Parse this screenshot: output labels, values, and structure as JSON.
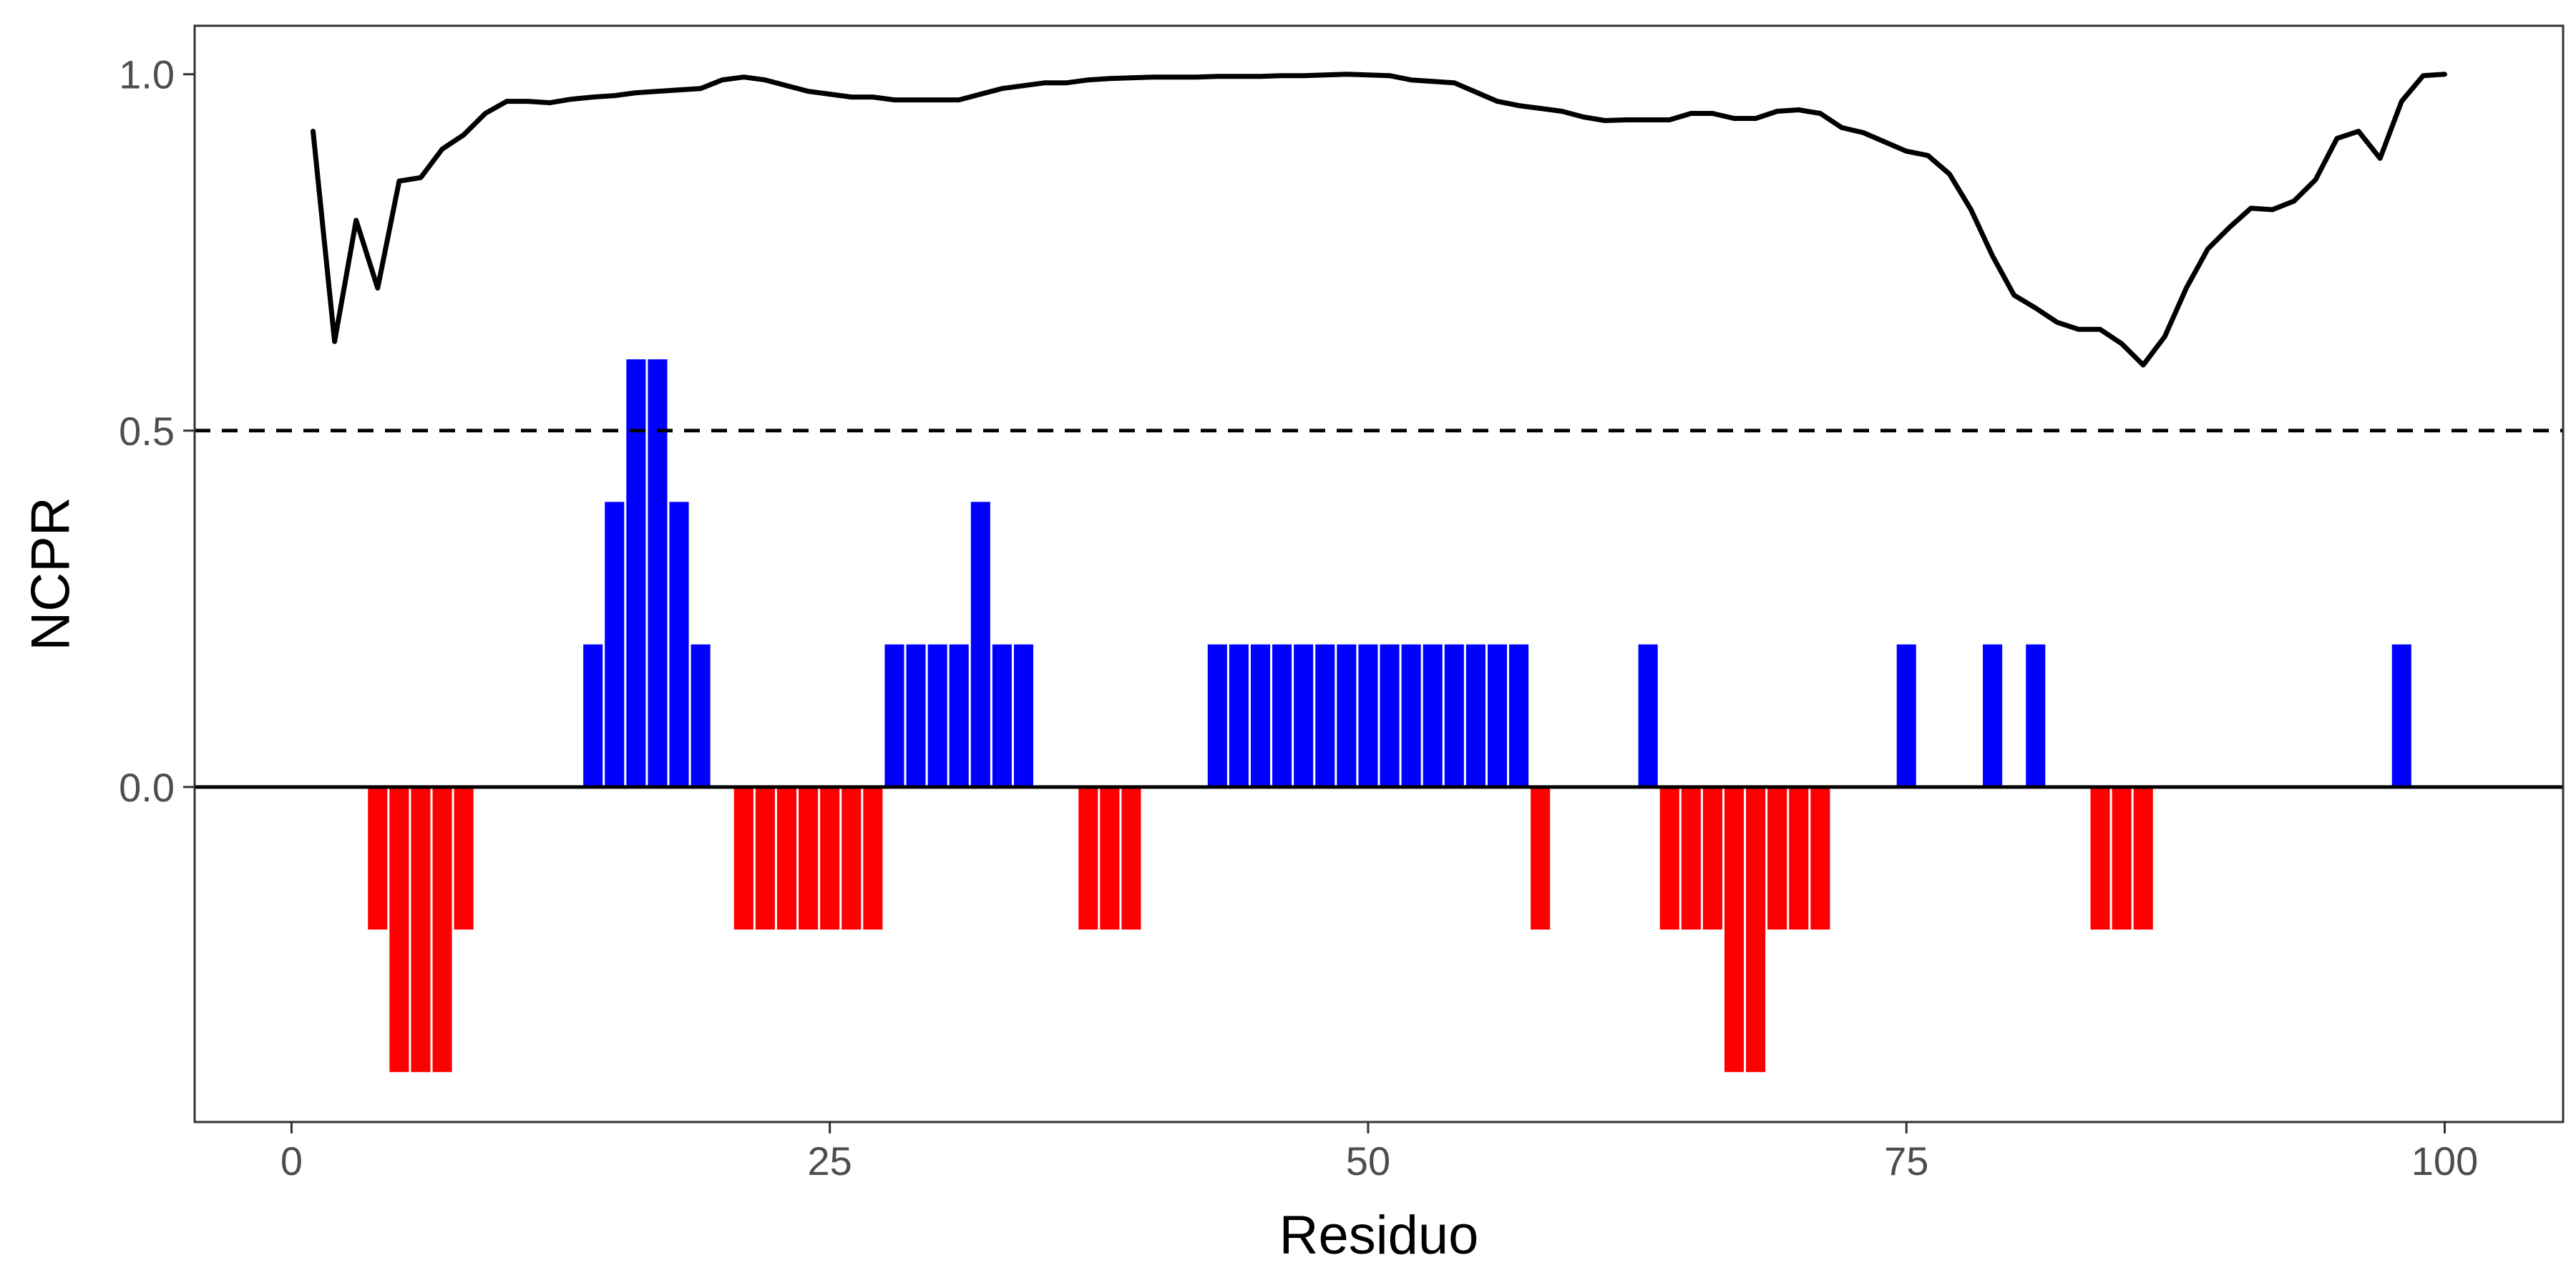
{
  "chart_data": {
    "type": "bar",
    "xlabel": "Residuo",
    "ylabel": "NCPR",
    "xlim": [
      -4.5,
      105.5
    ],
    "ylim": [
      -0.47,
      1.068
    ],
    "xticks": [
      0,
      25,
      50,
      75,
      100
    ],
    "xtick_labels": [
      "0",
      "25",
      "50",
      "75",
      "100"
    ],
    "yticks": [
      0.0,
      0.5,
      1.0
    ],
    "ytick_labels": [
      "0.0",
      "0.5",
      "1.0"
    ],
    "grid": false,
    "legend": "none",
    "reference_lines": [
      {
        "y": 0.5,
        "style": "dashed",
        "color": "#000000"
      },
      {
        "y": 0.0,
        "style": "solid",
        "color": "#000000"
      }
    ],
    "colors": {
      "positive": "#0000ff",
      "negative": "#ff0000",
      "line": "#000000"
    },
    "bars": {
      "x": [
        4,
        5,
        6,
        7,
        8,
        14,
        15,
        16,
        17,
        18,
        19,
        21,
        22,
        23,
        24,
        25,
        26,
        27,
        28,
        29,
        30,
        31,
        32,
        33,
        34,
        37,
        38,
        39,
        43,
        44,
        45,
        46,
        47,
        48,
        49,
        50,
        51,
        52,
        53,
        54,
        55,
        56,
        57,
        58,
        63,
        64,
        65,
        66,
        67,
        68,
        69,
        70,
        71,
        75,
        79,
        81,
        84,
        85,
        86,
        98
      ],
      "values": [
        -0.2,
        -0.4,
        -0.4,
        -0.4,
        -0.2,
        0.2,
        0.4,
        0.6,
        0.6,
        0.4,
        0.2,
        -0.2,
        -0.2,
        -0.2,
        -0.2,
        -0.2,
        -0.2,
        -0.2,
        0.2,
        0.2,
        0.2,
        0.2,
        0.4,
        0.2,
        0.2,
        -0.2,
        -0.2,
        -0.2,
        0.2,
        0.2,
        0.2,
        0.2,
        0.2,
        0.2,
        0.2,
        0.2,
        0.2,
        0.2,
        0.2,
        0.2,
        0.2,
        0.2,
        0.2,
        -0.2,
        0.2,
        -0.2,
        -0.2,
        -0.2,
        -0.4,
        -0.4,
        -0.2,
        -0.2,
        -0.2,
        0.2,
        0.2,
        0.2,
        -0.2,
        -0.2,
        -0.2,
        0.2
      ]
    },
    "line": {
      "x": [
        1,
        2,
        3,
        4,
        5,
        6,
        7,
        8,
        9,
        10,
        11,
        12,
        13,
        14,
        15,
        16,
        17,
        18,
        19,
        20,
        21,
        22,
        23,
        24,
        25,
        26,
        27,
        28,
        29,
        30,
        31,
        32,
        33,
        34,
        35,
        36,
        37,
        38,
        39,
        40,
        41,
        42,
        43,
        44,
        45,
        46,
        47,
        48,
        49,
        50,
        51,
        52,
        53,
        54,
        55,
        56,
        57,
        58,
        59,
        60,
        61,
        62,
        63,
        64,
        65,
        66,
        67,
        68,
        69,
        70,
        71,
        72,
        73,
        74,
        75,
        76,
        77,
        78,
        79,
        80,
        81,
        82,
        83,
        84,
        85,
        86,
        87,
        88,
        89,
        90,
        91,
        92,
        93,
        94,
        95,
        96,
        97,
        98,
        99,
        100
      ],
      "values": [
        0.92,
        0.625,
        0.795,
        0.7,
        0.85,
        0.855,
        0.895,
        0.915,
        0.945,
        0.962,
        0.962,
        0.96,
        0.965,
        0.968,
        0.97,
        0.974,
        0.976,
        0.978,
        0.98,
        0.992,
        0.996,
        0.992,
        0.984,
        0.976,
        0.972,
        0.968,
        0.968,
        0.964,
        0.964,
        0.964,
        0.964,
        0.972,
        0.98,
        0.984,
        0.988,
        0.988,
        0.992,
        0.994,
        0.995,
        0.996,
        0.996,
        0.996,
        0.997,
        0.997,
        0.997,
        0.998,
        0.998,
        0.999,
        1.0,
        0.999,
        0.998,
        0.992,
        0.99,
        0.988,
        0.975,
        0.962,
        0.956,
        0.952,
        0.948,
        0.94,
        0.935,
        0.936,
        0.936,
        0.936,
        0.945,
        0.945,
        0.938,
        0.938,
        0.948,
        0.95,
        0.945,
        0.925,
        0.918,
        0.905,
        0.892,
        0.886,
        0.86,
        0.81,
        0.745,
        0.69,
        0.672,
        0.652,
        0.642,
        0.642,
        0.622,
        0.592,
        0.632,
        0.7,
        0.755,
        0.785,
        0.812,
        0.81,
        0.822,
        0.852,
        0.91,
        0.92,
        0.882,
        0.962,
        0.998,
        1.0
      ]
    }
  }
}
